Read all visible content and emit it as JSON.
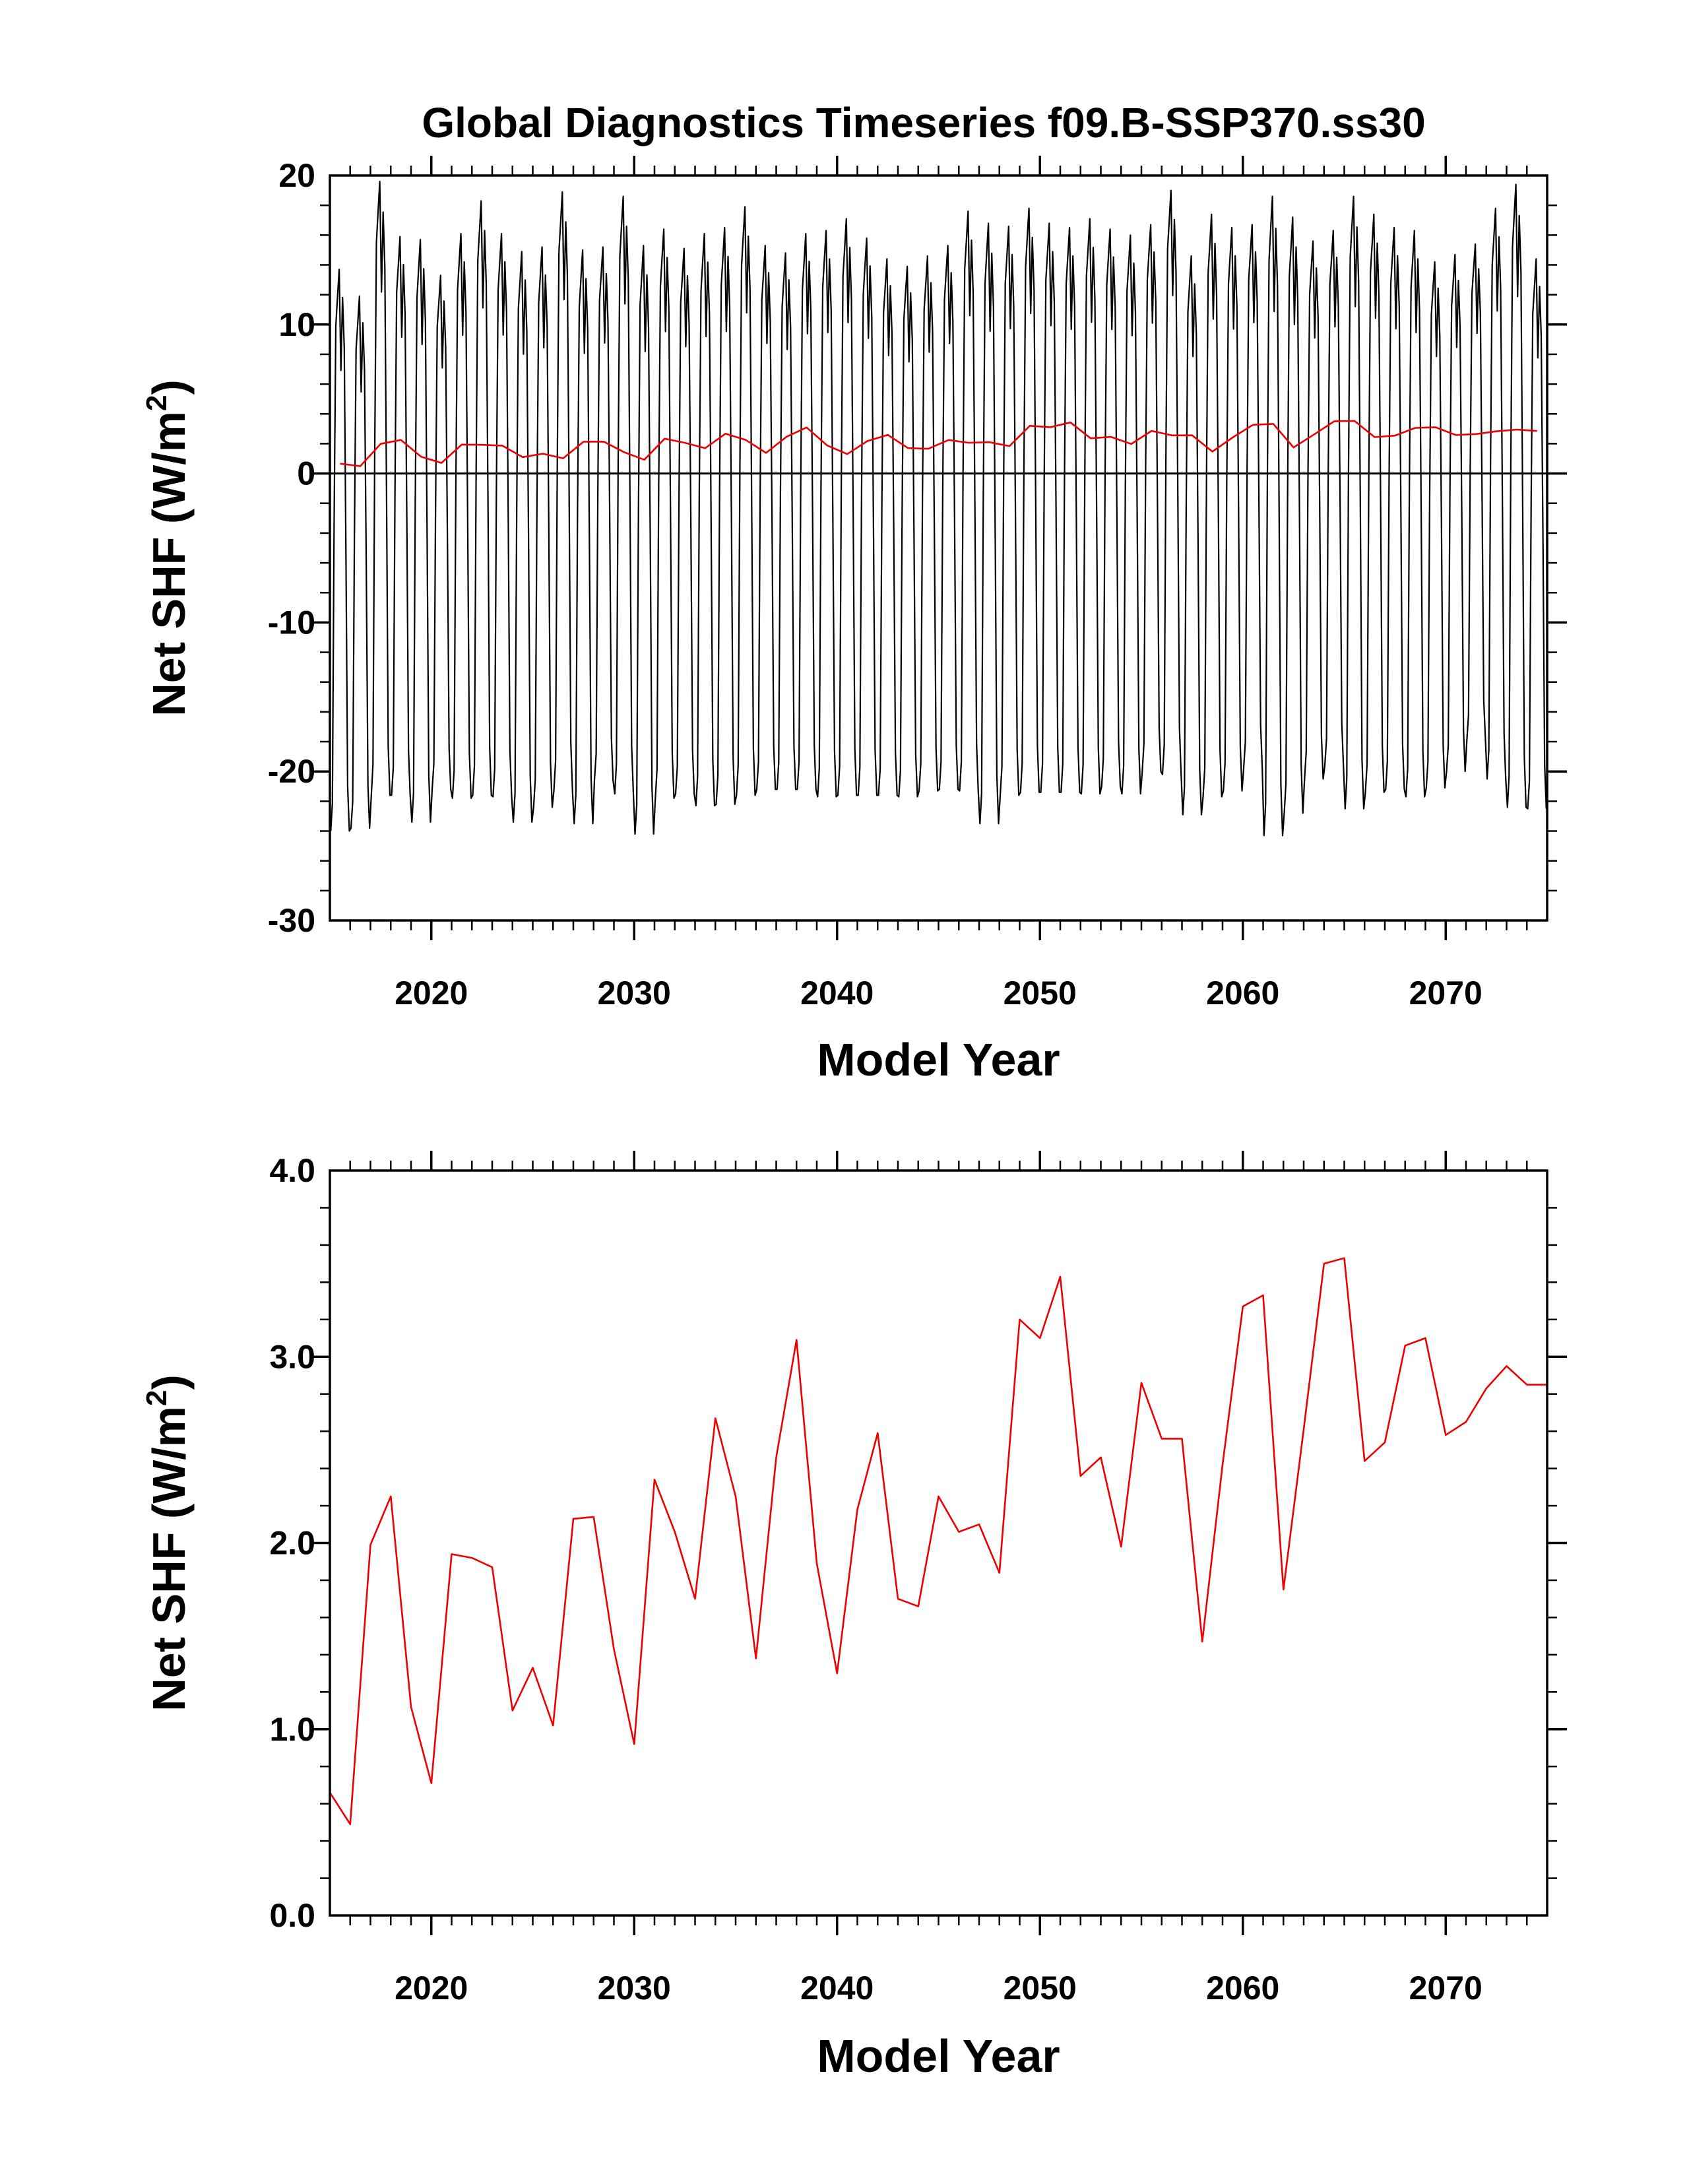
{
  "figure": {
    "title": "Global Diagnostics Timeseries f09.B-SSP370.ss30"
  },
  "chart_data": [
    {
      "type": "line",
      "xlabel": "Model Year",
      "ylabel": "Net SHF",
      "ylabel_unit": "(W/m",
      "ylabel_sup": "2",
      "ylabel_close": ")",
      "xlim": [
        2015,
        2075
      ],
      "ylim": [
        -30,
        20
      ],
      "xticks": [
        2020,
        2030,
        2040,
        2050,
        2060,
        2070
      ],
      "xtick_labels": [
        "2020",
        "2030",
        "2040",
        "2050",
        "2060",
        "2070"
      ],
      "yticks": [
        -30,
        -20,
        -10,
        0,
        10,
        20
      ],
      "ytick_labels": [
        "-30",
        "-20",
        "-10",
        "0",
        "10",
        "20"
      ],
      "zero_line": true,
      "series": [
        {
          "color": "#000000",
          "monthly_min": [
            -24.0,
            -23.8,
            -21.6,
            -21.6,
            -23.4,
            -21.2,
            -21.8,
            -21.6,
            -21.7,
            -23.4,
            -22.4,
            -21.3,
            -23.5,
            -20.6,
            -21.5,
            -24.2,
            -21.8,
            -21.5,
            -22.3,
            -22.2,
            -21.6,
            -21.2,
            -21.2,
            -21.2,
            -21.7,
            -21.6,
            -21.6,
            -21.6,
            -21.7,
            -21.3,
            -21.2,
            -21.3,
            -23.5,
            -21.6,
            -21.4,
            -21.4,
            -21.4,
            -21.5,
            -21.0,
            -21.5,
            -20.0,
            -20.2,
            -22.9,
            -21.7,
            -21.3,
            -19.8,
            -24.3,
            -22.8,
            -20.5,
            -19.6,
            -22.5,
            -21.4,
            -21.2,
            -21.7,
            -21.1,
            -20.0,
            -17.9,
            -20.5,
            -22.4,
            -22.5
          ],
          "monthly_max": [
            13.7,
            11.9,
            19.6,
            15.9,
            15.7,
            13.3,
            16.1,
            18.3,
            16.1,
            14.9,
            15.2,
            18.9,
            15.0,
            15.2,
            18.6,
            15.3,
            16.4,
            15.1,
            16.1,
            16.5,
            17.9,
            15.3,
            14.8,
            16.1,
            16.3,
            17.1,
            15.8,
            14.4,
            13.9,
            14.6,
            15.3,
            17.6,
            16.8,
            16.6,
            17.8,
            16.8,
            16.5,
            17.1,
            16.4,
            16.0,
            16.7,
            19.0,
            14.6,
            17.4,
            16.5,
            16.7,
            18.6,
            17.2,
            15.6,
            16.3,
            18.6,
            17.4,
            16.5,
            16.3,
            14.2,
            14.7,
            15.4,
            17.8,
            19.4,
            14.4
          ]
        },
        {
          "color": "#ee0000",
          "x": [
            2015.5,
            2016.5,
            2017.5,
            2018.5,
            2019.5,
            2020.5,
            2021.5,
            2022.5,
            2023.5,
            2024.5,
            2025.5,
            2026.5,
            2027.5,
            2028.5,
            2029.5,
            2030.5,
            2031.5,
            2032.5,
            2033.5,
            2034.5,
            2035.5,
            2036.5,
            2037.5,
            2038.5,
            2039.5,
            2040.5,
            2041.5,
            2042.5,
            2043.5,
            2044.5,
            2045.5,
            2046.5,
            2047.5,
            2048.5,
            2049.5,
            2050.5,
            2051.5,
            2052.5,
            2053.5,
            2054.5,
            2055.5,
            2056.5,
            2057.5,
            2058.5,
            2059.5,
            2060.5,
            2061.5,
            2062.5,
            2063.5,
            2064.5,
            2065.5,
            2066.5,
            2067.5,
            2068.5,
            2069.5,
            2070.5,
            2071.5,
            2072.5,
            2073.5,
            2074.5
          ],
          "values": [
            0.66,
            0.49,
            1.99,
            2.25,
            1.12,
            0.71,
            1.94,
            1.92,
            1.87,
            1.1,
            1.33,
            1.02,
            2.13,
            2.14,
            1.43,
            0.92,
            2.34,
            2.06,
            1.7,
            2.67,
            2.25,
            1.38,
            2.46,
            3.09,
            1.89,
            1.3,
            2.18,
            2.59,
            1.7,
            1.66,
            2.25,
            2.06,
            2.1,
            1.84,
            3.2,
            3.1,
            3.43,
            2.36,
            2.46,
            1.98,
            2.86,
            2.56,
            2.56,
            1.47,
            2.42,
            3.27,
            3.33,
            1.75,
            2.61,
            3.5,
            3.53,
            2.44,
            2.54,
            3.06,
            3.1,
            2.58,
            2.65,
            2.83,
            2.95,
            2.85
          ]
        }
      ]
    },
    {
      "type": "line",
      "xlabel": "Model Year",
      "ylabel": "Net SHF",
      "ylabel_unit": "(W/m",
      "ylabel_sup": "2",
      "ylabel_close": ")",
      "xlim": [
        2015,
        2075
      ],
      "ylim": [
        0.0,
        4.0
      ],
      "xticks": [
        2020,
        2030,
        2040,
        2050,
        2060,
        2070
      ],
      "xtick_labels": [
        "2020",
        "2030",
        "2040",
        "2050",
        "2060",
        "2070"
      ],
      "yticks": [
        0.0,
        1.0,
        2.0,
        3.0,
        4.0
      ],
      "ytick_labels": [
        "0.0",
        "1.0",
        "2.0",
        "3.0",
        "4.0"
      ],
      "zero_line": false,
      "series": [
        {
          "color": "#ee0000",
          "x": [
            2015.0,
            2016.0,
            2017.0,
            2018.0,
            2019.0,
            2020.0,
            2021.0,
            2022.0,
            2023.0,
            2024.0,
            2025.0,
            2026.0,
            2027.0,
            2028.0,
            2029.0,
            2030.0,
            2031.0,
            2032.0,
            2033.0,
            2034.0,
            2035.0,
            2036.0,
            2037.0,
            2038.0,
            2039.0,
            2040.0,
            2041.0,
            2042.0,
            2043.0,
            2044.0,
            2045.0,
            2046.0,
            2047.0,
            2048.0,
            2049.0,
            2050.0,
            2051.0,
            2052.0,
            2053.0,
            2054.0,
            2055.0,
            2056.0,
            2057.0,
            2058.0,
            2059.0,
            2060.0,
            2061.0,
            2062.0,
            2063.0,
            2064.0,
            2065.0,
            2066.0,
            2067.0,
            2068.0,
            2069.0,
            2070.0,
            2071.0,
            2072.0,
            2073.0,
            2074.0,
            2075.0
          ],
          "values": [
            0.66,
            0.49,
            1.99,
            2.25,
            1.12,
            0.71,
            1.94,
            1.92,
            1.87,
            1.1,
            1.33,
            1.02,
            2.13,
            2.14,
            1.43,
            0.92,
            2.34,
            2.06,
            1.7,
            2.67,
            2.25,
            1.38,
            2.46,
            3.09,
            1.89,
            1.3,
            2.18,
            2.59,
            1.7,
            1.66,
            2.25,
            2.06,
            2.1,
            1.84,
            3.2,
            3.1,
            3.43,
            2.36,
            2.46,
            1.98,
            2.86,
            2.56,
            2.56,
            1.47,
            2.42,
            3.27,
            3.33,
            1.75,
            2.61,
            3.5,
            3.53,
            2.44,
            2.54,
            3.06,
            3.1,
            2.58,
            2.65,
            2.83,
            2.95,
            2.85,
            2.85
          ]
        }
      ]
    }
  ]
}
